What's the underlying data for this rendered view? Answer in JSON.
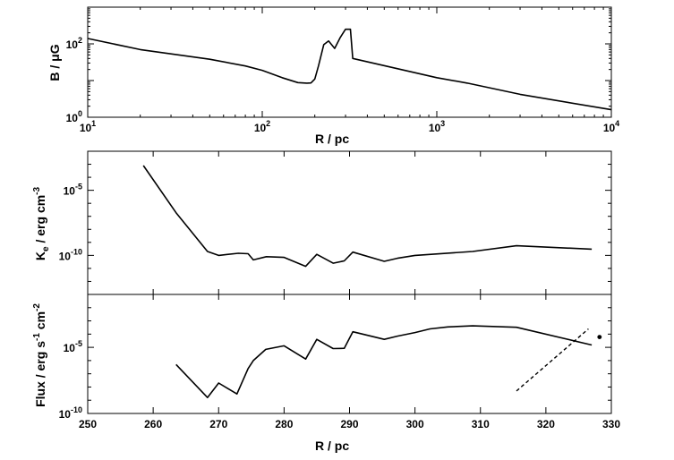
{
  "chart_data": [
    {
      "type": "line",
      "xscale": "log",
      "yscale": "log",
      "xlabel": "R  /  pc",
      "ylabel": "B / μG",
      "xlim": [
        10,
        10000
      ],
      "ylim": [
        1,
        1000
      ],
      "xticks": [
        {
          "value": 10,
          "base": "10",
          "exp": "1"
        },
        {
          "value": 100,
          "base": "10",
          "exp": "2"
        },
        {
          "value": 1000,
          "base": "10",
          "exp": "3"
        },
        {
          "value": 10000,
          "base": "10",
          "exp": "4"
        }
      ],
      "yticks": [
        {
          "value": 1,
          "base": "10",
          "exp": "0"
        },
        {
          "value": 100,
          "base": "10",
          "exp": "2"
        }
      ],
      "series": [
        {
          "style": "solid",
          "x": [
            10,
            20,
            50,
            80,
            100,
            130,
            160,
            180,
            190,
            200,
            210,
            225,
            240,
            260,
            280,
            300,
            320,
            330,
            1000,
            1500,
            3000,
            10000
          ],
          "y": [
            140,
            70,
            38,
            25,
            19,
            12,
            8.8,
            8.5,
            8.6,
            11,
            25,
            95,
            120,
            75,
            150,
            250,
            250,
            40,
            12,
            8.5,
            4.2,
            1.6
          ]
        }
      ]
    },
    {
      "type": "line",
      "yscale": "log",
      "xlabel": "",
      "ylabel": "K_e / erg cm^-3",
      "ylabel_parts": {
        "main": "K",
        "sub": "e",
        "rest": " / erg cm",
        "sup": "-3"
      },
      "xlim": [
        250,
        330
      ],
      "ylim": [
        1e-13,
        0.01
      ],
      "yticks": [
        {
          "value": 1e-05,
          "base": "10",
          "exp": "-5"
        },
        {
          "value": 1e-10,
          "base": "10",
          "exp": "-10"
        }
      ],
      "series": [
        {
          "style": "solid",
          "x": [
            258.5,
            263.5,
            268.3,
            270,
            273,
            274.5,
            275.3,
            277.3,
            280,
            283.3,
            285,
            287.5,
            289.2,
            290.5,
            295.3,
            297.3,
            300,
            308.8,
            315.5,
            327
          ],
          "y": [
            0.0008,
            1.9e-07,
            2e-10,
            1e-10,
            1.45e-10,
            1.35e-10,
            4.5e-11,
            8e-11,
            7e-11,
            1.45e-11,
            1.2e-10,
            2.5e-11,
            3.8e-11,
            1.8e-10,
            3.5e-11,
            6e-11,
            1e-10,
            2e-10,
            5.5e-10,
            3e-10
          ]
        }
      ]
    },
    {
      "type": "line",
      "yscale": "log",
      "xlabel": "R  /  pc",
      "ylabel": "Flux / erg s^-1 cm^-2",
      "ylabel_parts": {
        "main": "Flux / erg s",
        "sup1": "-1",
        "mid": " cm",
        "sup2": "-2"
      },
      "xlim": [
        250,
        330
      ],
      "ylim": [
        1e-10,
        0.1
      ],
      "xticks": [
        250,
        260,
        270,
        280,
        290,
        300,
        310,
        320,
        330
      ],
      "yticks": [
        {
          "value": 1e-05,
          "base": "10",
          "exp": "-5"
        },
        {
          "value": 1e-10,
          "base": "10",
          "exp": "-10"
        }
      ],
      "series": [
        {
          "style": "solid",
          "x": [
            263.5,
            268.3,
            270,
            272.8,
            274.5,
            275.3,
            277.2,
            280,
            283.3,
            285,
            287.5,
            289.2,
            290.5,
            295.3,
            297.3,
            300,
            302.3,
            305,
            308.8,
            315.5,
            327
          ],
          "y": [
            5e-07,
            1.6e-09,
            2e-08,
            3e-09,
            2.5e-07,
            1e-06,
            7e-06,
            1.3e-05,
            1.3e-06,
            4e-05,
            8e-06,
            8.5e-06,
            0.00015,
            4e-05,
            7e-05,
            0.00013,
            0.00025,
            0.00035,
            0.00042,
            0.00033,
            1.5e-05
          ]
        },
        {
          "style": "dashed",
          "x": [
            315.5,
            326.5
          ],
          "y": [
            5e-09,
            0.00025
          ]
        },
        {
          "style": "marker",
          "x": [
            328.2
          ],
          "y": [
            6e-05
          ]
        }
      ]
    }
  ]
}
